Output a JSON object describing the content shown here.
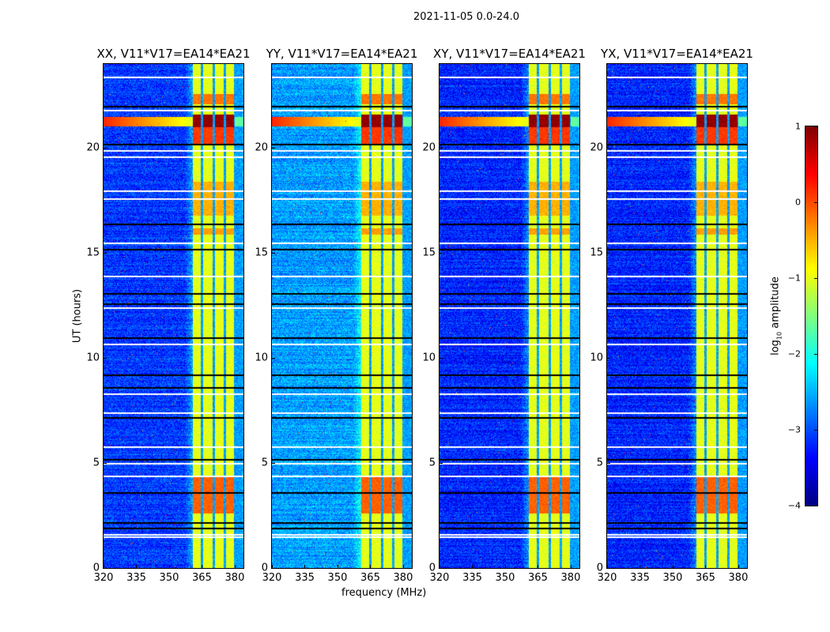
{
  "chart_data": {
    "type": "heatmap",
    "title": "2021-11-05 0.0-24.0",
    "xlabel": "frequency (MHz)",
    "ylabel": "UT (hours)",
    "xlim": [
      320,
      384
    ],
    "ylim": [
      0,
      24
    ],
    "xticks": [
      320,
      335,
      350,
      365,
      380
    ],
    "yticks": [
      0,
      5,
      10,
      15,
      20
    ],
    "panels": [
      {
        "title": "XX, V11*V17=EA14*EA21",
        "background_level": -3.1
      },
      {
        "title": "YY, V11*V17=EA14*EA21",
        "background_level": -2.6
      },
      {
        "title": "XY, V11*V17=EA14*EA21",
        "background_level": -3.2
      },
      {
        "title": "YX, V11*V17=EA14*EA21",
        "background_level": -3.2
      }
    ],
    "rfi_band_mhz": [
      360.5,
      380
    ],
    "band_level": -1.0,
    "channel_gaps_mhz": [
      364.8,
      370.2,
      375.3,
      380.0
    ],
    "hot_intervals_ut": [
      [
        21.0,
        21.6,
        0.9
      ],
      [
        20.2,
        21.0,
        0.1
      ],
      [
        22.1,
        22.6,
        -0.2
      ],
      [
        16.8,
        18.4,
        -0.5
      ],
      [
        2.6,
        4.4,
        -0.1
      ],
      [
        15.9,
        16.2,
        -0.4
      ]
    ],
    "flagged_rows_white_ut": [
      23.4,
      21.8,
      19.9,
      19.6,
      18.0,
      17.6,
      15.5,
      13.9,
      12.4,
      10.7,
      8.3,
      7.4,
      5.8,
      5.0,
      4.4,
      1.6,
      1.5
    ],
    "flagged_rows_black_ut": [
      22.0,
      20.2,
      16.4,
      15.2,
      13.1,
      12.6,
      11.0,
      9.2,
      8.6,
      7.2,
      5.2,
      3.6,
      2.2,
      1.9
    ],
    "colorbar": {
      "label_prefix": "log",
      "label_sub": "10",
      "label_suffix": " amplitude",
      "range": [
        -4,
        1
      ],
      "ticks": [
        "1",
        "0",
        "−1",
        "−2",
        "−3",
        "−4"
      ],
      "tick_values": [
        1,
        0,
        -1,
        -2,
        -3,
        -4
      ],
      "colormap": "jet"
    }
  }
}
